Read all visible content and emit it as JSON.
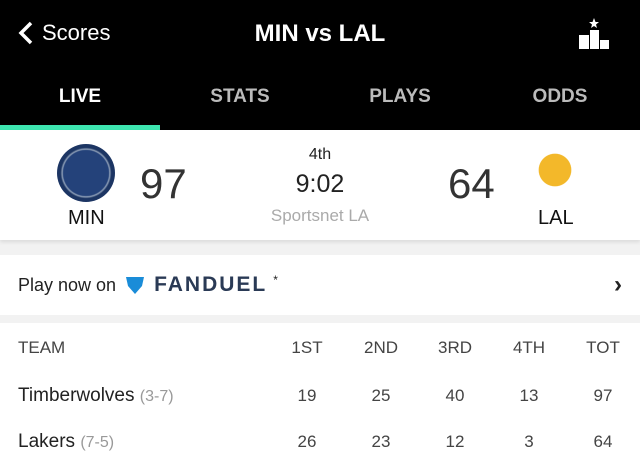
{
  "header": {
    "back_label": "Scores",
    "title": "MIN vs LAL",
    "leaderboard_icon": "leaderboard-icon"
  },
  "tabs": [
    {
      "label": "LIVE"
    },
    {
      "label": "STATS"
    },
    {
      "label": "PLAYS"
    },
    {
      "label": "ODDS"
    }
  ],
  "accent": "#3ee6b0",
  "game": {
    "home": {
      "abbr": "MIN",
      "score": "97"
    },
    "away": {
      "abbr": "LAL",
      "score": "64"
    },
    "period": "4th",
    "clock": "9:02",
    "network": "Sportsnet LA"
  },
  "promo": {
    "text": "Play now on",
    "brand": "FANDUEL",
    "asterisk": "*"
  },
  "table": {
    "headers": [
      "TEAM",
      "1ST",
      "2ND",
      "3RD",
      "4TH",
      "TOT"
    ],
    "rows": [
      {
        "team": "Timberwolves",
        "record": "(3-7)",
        "scores": [
          "19",
          "25",
          "40",
          "13",
          "97"
        ]
      },
      {
        "team": "Lakers",
        "record": "(7-5)",
        "scores": [
          "26",
          "23",
          "12",
          "3",
          "64"
        ]
      }
    ]
  }
}
